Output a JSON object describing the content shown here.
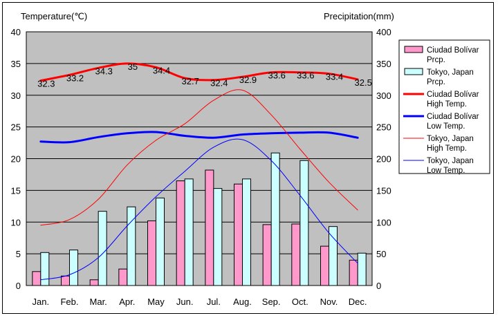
{
  "chart_data": {
    "type": "bar",
    "left_axis_title": "Temperature(℃)",
    "right_axis_title": "Precipitation(mm)",
    "categories": [
      "Jan.",
      "Feb.",
      "Mar.",
      "Apr.",
      "May",
      "Jun.",
      "Jul.",
      "Aug.",
      "Sep.",
      "Oct.",
      "Nov.",
      "Dec."
    ],
    "ylim_left": [
      0,
      40
    ],
    "yticks_left": [
      "0",
      "5",
      "10",
      "15",
      "20",
      "25",
      "30",
      "35",
      "40"
    ],
    "ylim_right": [
      0,
      400
    ],
    "yticks_right": [
      "0",
      "50",
      "100",
      "150",
      "200",
      "250",
      "300",
      "350",
      "400"
    ],
    "grid": true,
    "legend_position": "right",
    "background_color": "#c0c0c0",
    "series": [
      {
        "name": "Ciudad Bolívar Prcp.",
        "legend_lines": [
          "Ciudad Bolívar",
          "Prcp."
        ],
        "kind": "bar",
        "axis": "right",
        "color": "#ff99cc",
        "values": [
          22,
          15,
          9,
          26,
          102,
          165,
          182,
          160,
          96,
          97,
          62,
          40
        ]
      },
      {
        "name": "Tokyo, Japan Prcp.",
        "legend_lines": [
          "Tokyo, Japan",
          "Prcp."
        ],
        "kind": "bar",
        "axis": "right",
        "color": "#ccffff",
        "values": [
          52,
          56,
          117,
          124,
          138,
          168,
          153,
          168,
          209,
          197,
          93,
          51
        ]
      },
      {
        "name": "Ciudad Bolívar High Temp.",
        "legend_lines": [
          "Ciudad Bolívar",
          "High Temp."
        ],
        "kind": "line",
        "axis": "left",
        "color": "#ff0000",
        "width": 3,
        "values": [
          32.3,
          33.2,
          34.3,
          35,
          34.4,
          32.7,
          32.4,
          32.9,
          33.6,
          33.6,
          33.4,
          32.5
        ],
        "labels": [
          "32.3",
          "33.2",
          "34.3",
          "35",
          "34.4",
          "32.7",
          "32.4",
          "32.9",
          "33.6",
          "33.6",
          "33.4",
          "32.5"
        ]
      },
      {
        "name": "Ciudad Bolívar Low Temp.",
        "legend_lines": [
          "Ciudad Bolívar",
          "Low Temp."
        ],
        "kind": "line",
        "axis": "left",
        "color": "#0000ff",
        "width": 3,
        "values": [
          22.7,
          22.6,
          23.4,
          24,
          24.2,
          23.6,
          23.3,
          23.8,
          24,
          24.1,
          24.1,
          23.3
        ]
      },
      {
        "name": "Tokyo, Japan High Temp.",
        "legend_lines": [
          "Tokyo, Japan",
          "High Temp."
        ],
        "kind": "line",
        "axis": "left",
        "color": "#ff0000",
        "width": 1,
        "values": [
          9.5,
          10.4,
          13.6,
          19,
          22.9,
          25.5,
          29.2,
          30.8,
          26.9,
          21.5,
          16.3,
          11.9
        ]
      },
      {
        "name": "Tokyo, Japan Low Temp.",
        "legend_lines": [
          "Tokyo, Japan",
          "Low Temp."
        ],
        "kind": "line",
        "axis": "left",
        "color": "#0000ff",
        "width": 1,
        "values": [
          0.9,
          1.7,
          4.4,
          9.4,
          14,
          18,
          21.8,
          23,
          19.7,
          14.2,
          8.3,
          3.5
        ]
      }
    ]
  }
}
